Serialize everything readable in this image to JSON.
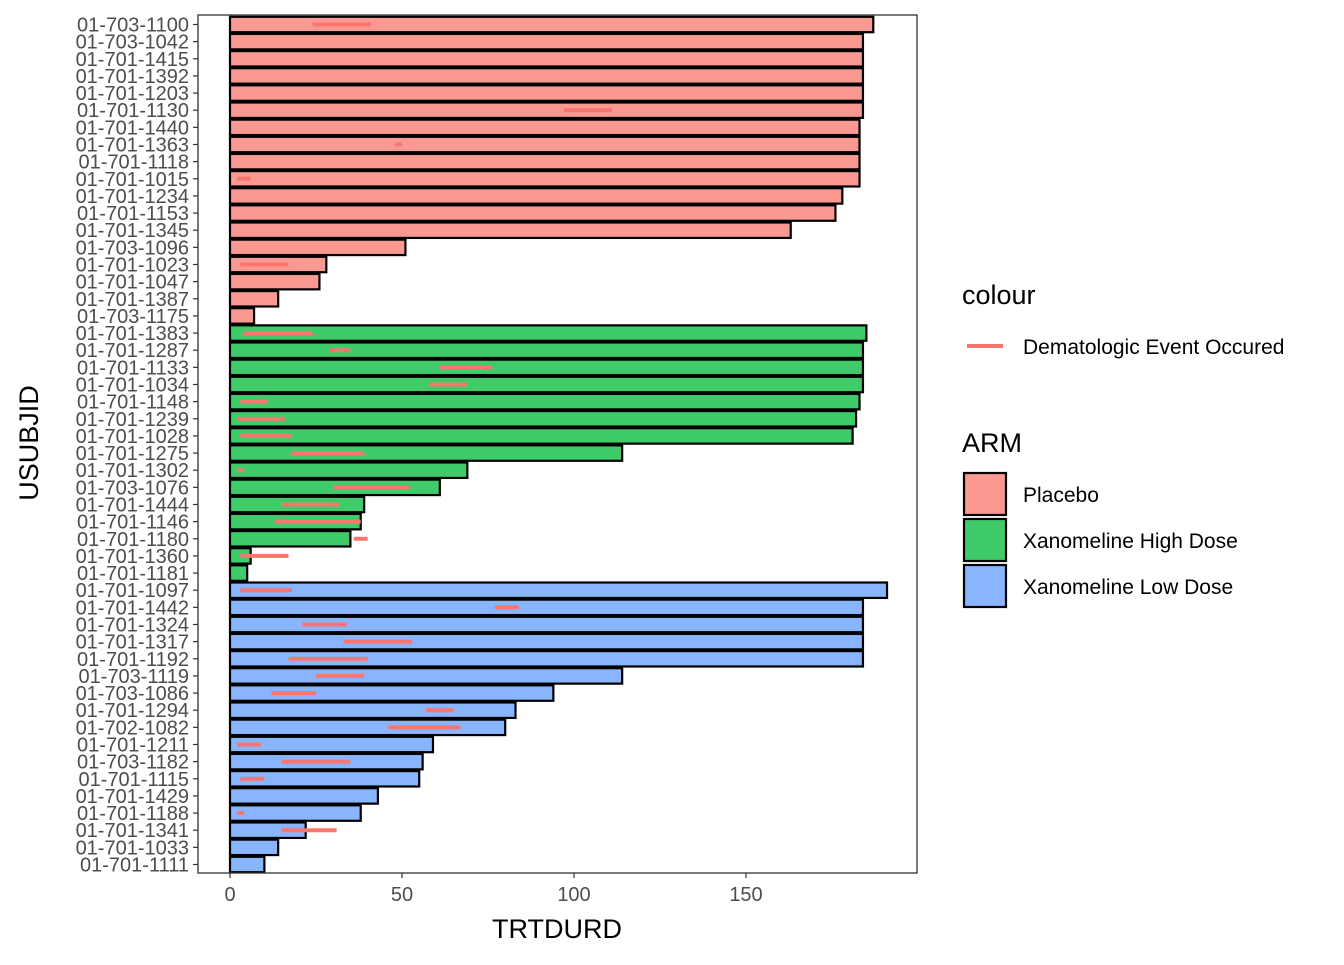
{
  "chart_data": {
    "type": "bar",
    "orientation": "horizontal",
    "xlabel": "TRTDURD",
    "ylabel": "USUBJID",
    "xlim": [
      -8,
      200
    ],
    "x_ticks": [
      0,
      50,
      100,
      150
    ],
    "grid": false,
    "legend_position": "right",
    "colour_legend": {
      "title": "colour",
      "label": "Dematologic Event Occured",
      "color": "#F8766D"
    },
    "fill_legend": {
      "title": "ARM",
      "entries": [
        {
          "name": "Placebo",
          "color": "#F8766D"
        },
        {
          "name": "Xanomeline High Dose",
          "color": "#00BA38"
        },
        {
          "name": "Xanomeline Low Dose",
          "color": "#619CFF"
        }
      ]
    },
    "rows": [
      {
        "id": "01-703-1100",
        "arm": "Placebo",
        "trtdurd": 187,
        "events": [
          [
            24,
            41
          ]
        ]
      },
      {
        "id": "01-703-1042",
        "arm": "Placebo",
        "trtdurd": 184,
        "events": []
      },
      {
        "id": "01-701-1415",
        "arm": "Placebo",
        "trtdurd": 184,
        "events": []
      },
      {
        "id": "01-701-1392",
        "arm": "Placebo",
        "trtdurd": 184,
        "events": []
      },
      {
        "id": "01-701-1203",
        "arm": "Placebo",
        "trtdurd": 184,
        "events": []
      },
      {
        "id": "01-701-1130",
        "arm": "Placebo",
        "trtdurd": 184,
        "events": [
          [
            97,
            111
          ]
        ]
      },
      {
        "id": "01-701-1440",
        "arm": "Placebo",
        "trtdurd": 183,
        "events": []
      },
      {
        "id": "01-701-1363",
        "arm": "Placebo",
        "trtdurd": 183,
        "events": [
          [
            48,
            50
          ]
        ]
      },
      {
        "id": "01-701-1118",
        "arm": "Placebo",
        "trtdurd": 183,
        "events": []
      },
      {
        "id": "01-701-1015",
        "arm": "Placebo",
        "trtdurd": 183,
        "events": [
          [
            2,
            6
          ]
        ]
      },
      {
        "id": "01-701-1234",
        "arm": "Placebo",
        "trtdurd": 178,
        "events": []
      },
      {
        "id": "01-701-1153",
        "arm": "Placebo",
        "trtdurd": 176,
        "events": []
      },
      {
        "id": "01-701-1345",
        "arm": "Placebo",
        "trtdurd": 163,
        "events": []
      },
      {
        "id": "01-703-1096",
        "arm": "Placebo",
        "trtdurd": 51,
        "events": []
      },
      {
        "id": "01-701-1023",
        "arm": "Placebo",
        "trtdurd": 28,
        "events": [
          [
            3,
            17
          ]
        ]
      },
      {
        "id": "01-701-1047",
        "arm": "Placebo",
        "trtdurd": 26,
        "events": []
      },
      {
        "id": "01-701-1387",
        "arm": "Placebo",
        "trtdurd": 14,
        "events": []
      },
      {
        "id": "01-703-1175",
        "arm": "Placebo",
        "trtdurd": 7,
        "events": []
      },
      {
        "id": "01-701-1383",
        "arm": "Xanomeline High Dose",
        "trtdurd": 185,
        "events": [
          [
            4,
            24
          ]
        ]
      },
      {
        "id": "01-701-1287",
        "arm": "Xanomeline High Dose",
        "trtdurd": 184,
        "events": [
          [
            29,
            35
          ]
        ]
      },
      {
        "id": "01-701-1133",
        "arm": "Xanomeline High Dose",
        "trtdurd": 184,
        "events": [
          [
            61,
            76
          ]
        ]
      },
      {
        "id": "01-701-1034",
        "arm": "Xanomeline High Dose",
        "trtdurd": 184,
        "events": [
          [
            58,
            69
          ]
        ]
      },
      {
        "id": "01-701-1148",
        "arm": "Xanomeline High Dose",
        "trtdurd": 183,
        "events": [
          [
            3,
            11
          ]
        ]
      },
      {
        "id": "01-701-1239",
        "arm": "Xanomeline High Dose",
        "trtdurd": 182,
        "events": [
          [
            2,
            16
          ]
        ]
      },
      {
        "id": "01-701-1028",
        "arm": "Xanomeline High Dose",
        "trtdurd": 181,
        "events": [
          [
            3,
            18
          ]
        ]
      },
      {
        "id": "01-701-1275",
        "arm": "Xanomeline High Dose",
        "trtdurd": 114,
        "events": [
          [
            18,
            39
          ]
        ]
      },
      {
        "id": "01-701-1302",
        "arm": "Xanomeline High Dose",
        "trtdurd": 69,
        "events": [
          [
            2,
            4
          ]
        ]
      },
      {
        "id": "01-703-1076",
        "arm": "Xanomeline High Dose",
        "trtdurd": 61,
        "events": [
          [
            30,
            52
          ]
        ]
      },
      {
        "id": "01-701-1444",
        "arm": "Xanomeline High Dose",
        "trtdurd": 39,
        "events": [
          [
            15,
            32
          ]
        ]
      },
      {
        "id": "01-701-1146",
        "arm": "Xanomeline High Dose",
        "trtdurd": 38,
        "events": [
          [
            13,
            38
          ]
        ]
      },
      {
        "id": "01-701-1180",
        "arm": "Xanomeline High Dose",
        "trtdurd": 35,
        "events": [
          [
            36,
            40
          ]
        ]
      },
      {
        "id": "01-701-1360",
        "arm": "Xanomeline High Dose",
        "trtdurd": 6,
        "events": [
          [
            3,
            17
          ]
        ]
      },
      {
        "id": "01-701-1181",
        "arm": "Xanomeline High Dose",
        "trtdurd": 5,
        "events": []
      },
      {
        "id": "01-701-1097",
        "arm": "Xanomeline Low Dose",
        "trtdurd": 191,
        "events": [
          [
            3,
            18
          ]
        ]
      },
      {
        "id": "01-701-1442",
        "arm": "Xanomeline Low Dose",
        "trtdurd": 184,
        "events": [
          [
            77,
            84
          ]
        ]
      },
      {
        "id": "01-701-1324",
        "arm": "Xanomeline Low Dose",
        "trtdurd": 184,
        "events": [
          [
            21,
            34
          ]
        ]
      },
      {
        "id": "01-701-1317",
        "arm": "Xanomeline Low Dose",
        "trtdurd": 184,
        "events": [
          [
            33,
            53
          ]
        ]
      },
      {
        "id": "01-701-1192",
        "arm": "Xanomeline Low Dose",
        "trtdurd": 184,
        "events": [
          [
            17,
            40
          ]
        ]
      },
      {
        "id": "01-703-1119",
        "arm": "Xanomeline Low Dose",
        "trtdurd": 114,
        "events": [
          [
            25,
            39
          ]
        ]
      },
      {
        "id": "01-703-1086",
        "arm": "Xanomeline Low Dose",
        "trtdurd": 94,
        "events": [
          [
            12,
            25
          ]
        ]
      },
      {
        "id": "01-701-1294",
        "arm": "Xanomeline Low Dose",
        "trtdurd": 83,
        "events": [
          [
            57,
            65
          ]
        ]
      },
      {
        "id": "01-702-1082",
        "arm": "Xanomeline Low Dose",
        "trtdurd": 80,
        "events": [
          [
            46,
            67
          ]
        ]
      },
      {
        "id": "01-701-1211",
        "arm": "Xanomeline Low Dose",
        "trtdurd": 59,
        "events": [
          [
            2,
            9
          ]
        ]
      },
      {
        "id": "01-703-1182",
        "arm": "Xanomeline Low Dose",
        "trtdurd": 56,
        "events": [
          [
            15,
            35
          ]
        ]
      },
      {
        "id": "01-701-1115",
        "arm": "Xanomeline Low Dose",
        "trtdurd": 55,
        "events": [
          [
            3,
            10
          ]
        ]
      },
      {
        "id": "01-701-1429",
        "arm": "Xanomeline Low Dose",
        "trtdurd": 43,
        "events": []
      },
      {
        "id": "01-701-1188",
        "arm": "Xanomeline Low Dose",
        "trtdurd": 38,
        "events": [
          [
            2,
            4
          ]
        ]
      },
      {
        "id": "01-701-1341",
        "arm": "Xanomeline Low Dose",
        "trtdurd": 22,
        "events": [
          [
            15,
            31
          ]
        ]
      },
      {
        "id": "01-701-1033",
        "arm": "Xanomeline Low Dose",
        "trtdurd": 14,
        "events": []
      },
      {
        "id": "01-701-1111",
        "arm": "Xanomeline Low Dose",
        "trtdurd": 10,
        "events": []
      }
    ]
  }
}
